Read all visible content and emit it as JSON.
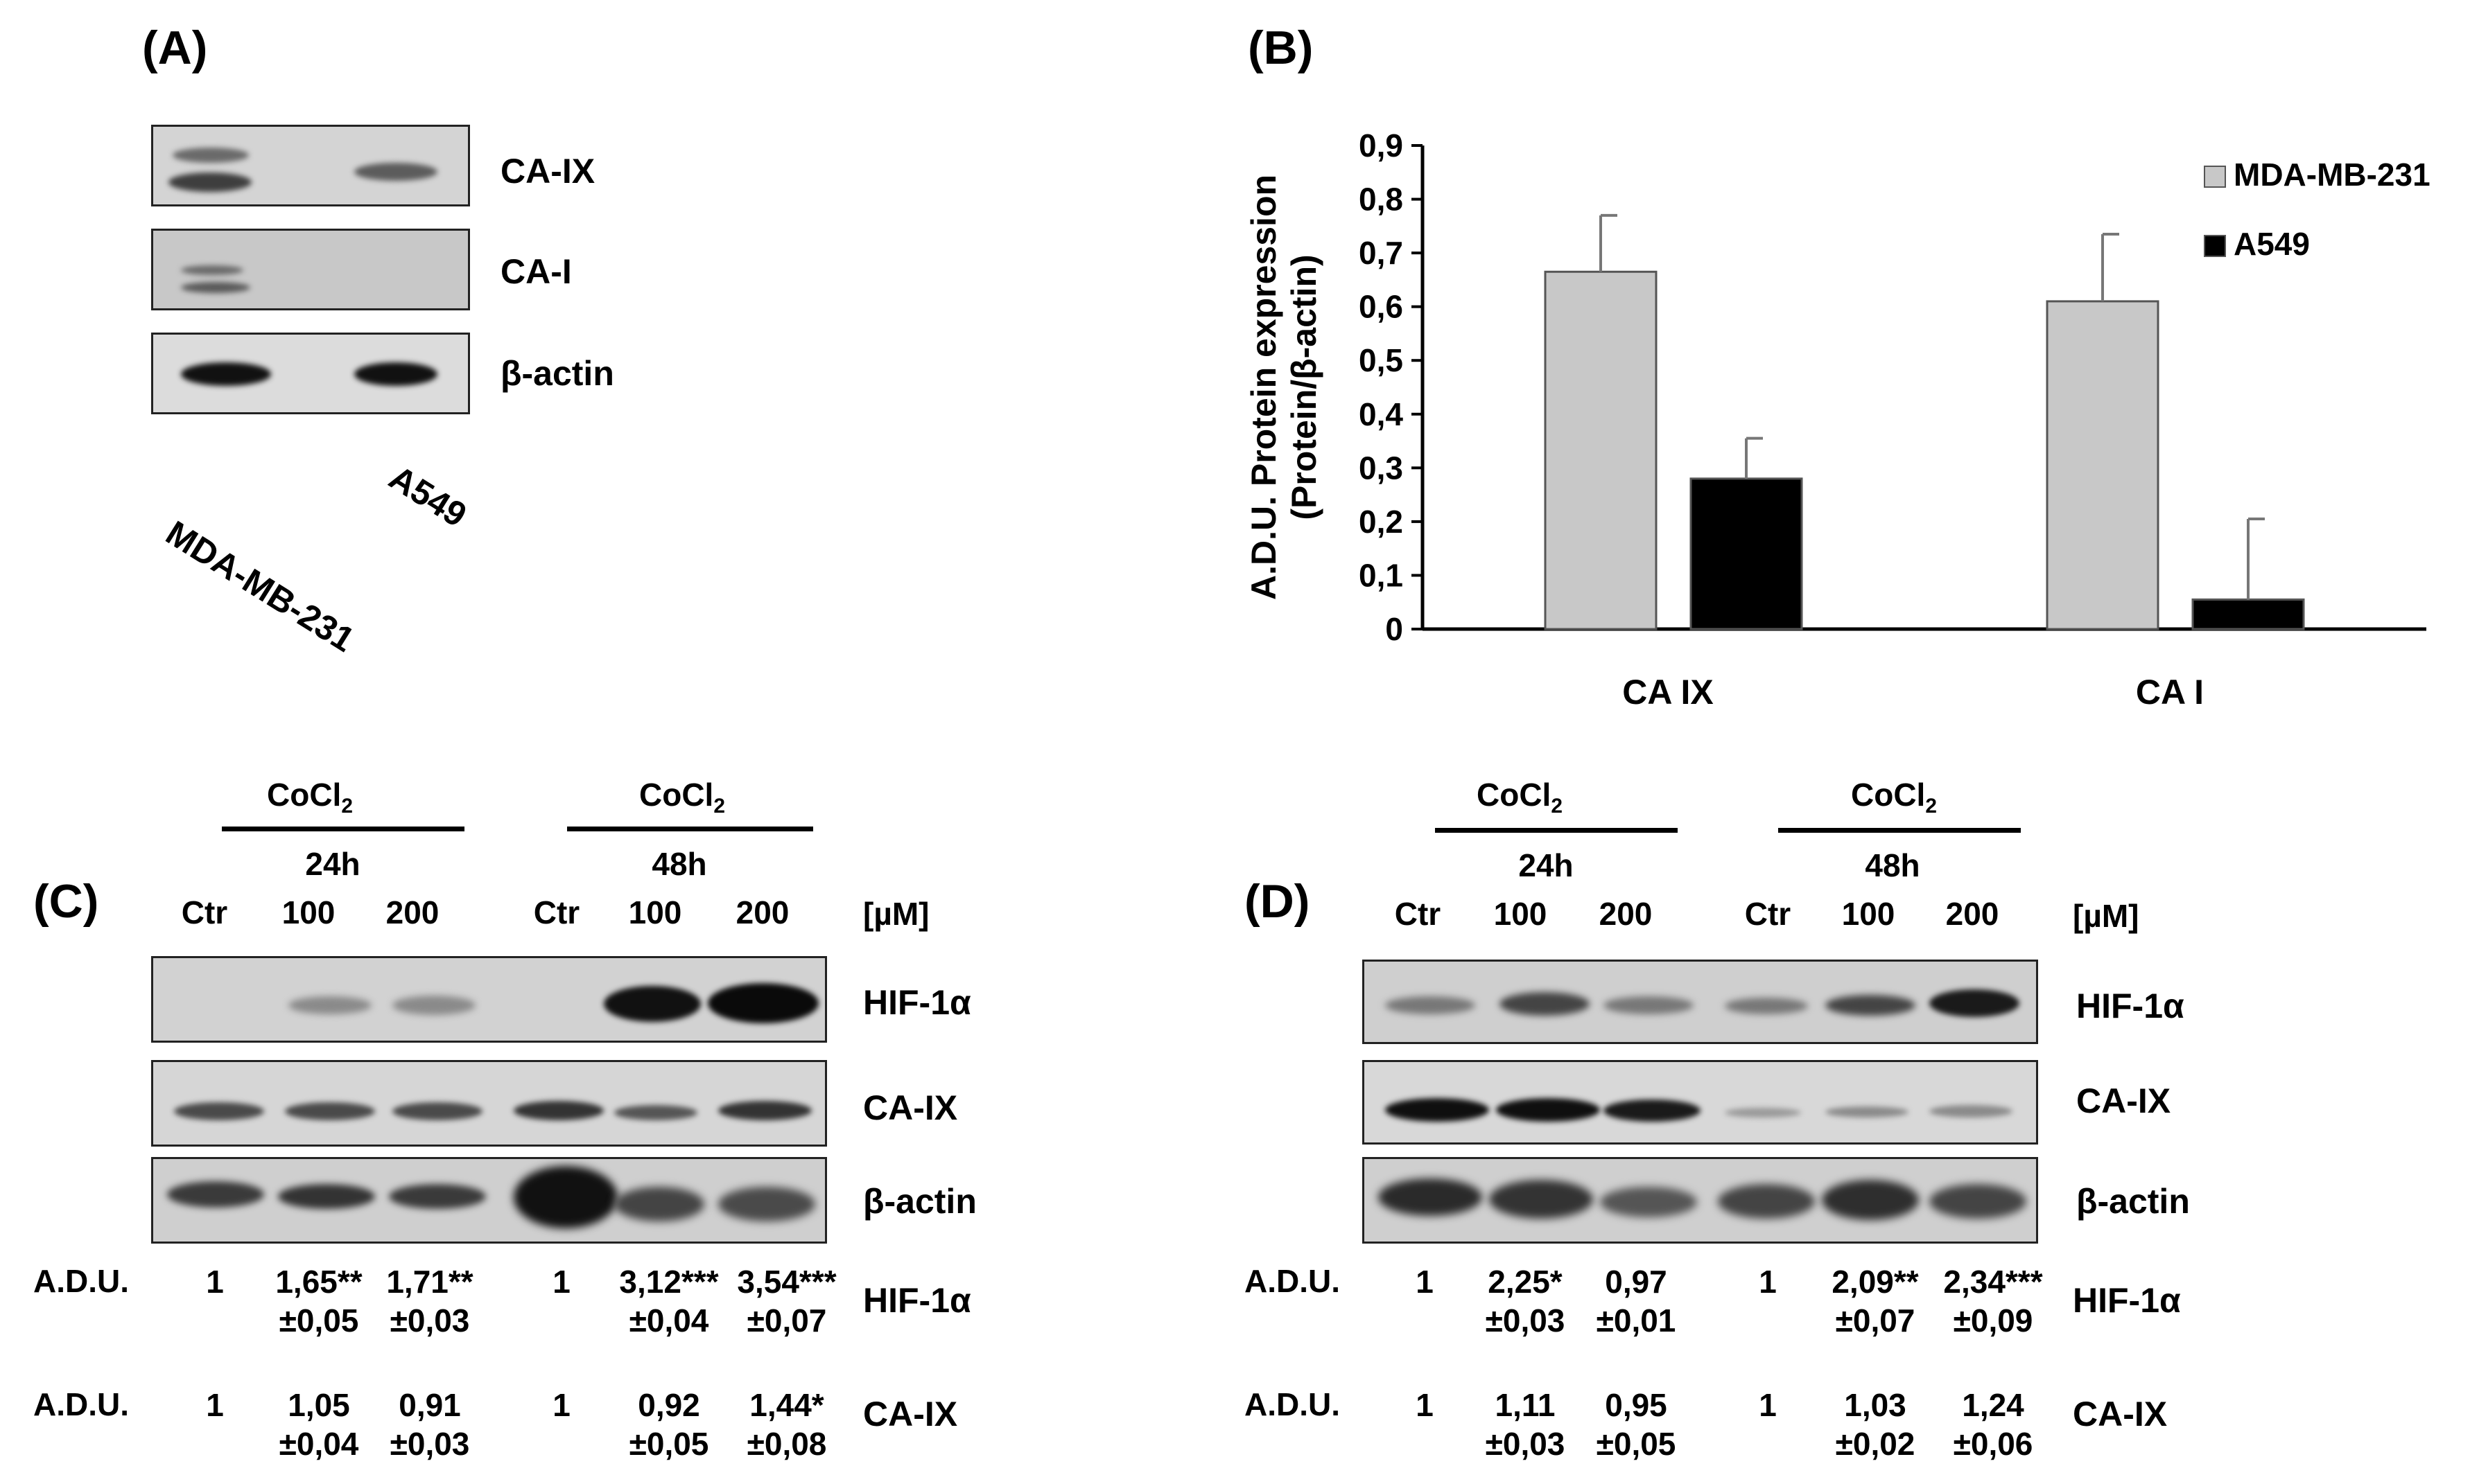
{
  "panelA": {
    "label": "(A)",
    "blot_labels": [
      "CA-IX",
      "CA-I",
      "β-actin"
    ],
    "lane_labels": [
      "MDA-MB-231",
      "A549"
    ]
  },
  "panelB": {
    "label": "(B)",
    "chart_data": {
      "type": "bar",
      "categories": [
        "CA IX",
        "CA I"
      ],
      "series": [
        {
          "name": "MDA-MB-231",
          "values": [
            0.665,
            0.61
          ],
          "errors": [
            0.105,
            0.125
          ],
          "color": "#c8c8c8"
        },
        {
          "name": "A549",
          "values": [
            0.28,
            0.055
          ],
          "errors": [
            0.075,
            0.15
          ],
          "color": "#000000"
        }
      ],
      "ylabel_line1": "A.D.U. Protein expression",
      "ylabel_line2": "(Protein/β-actin)",
      "ylim": [
        0,
        0.9
      ],
      "yticks": [
        "0",
        "0,1",
        "0,2",
        "0,3",
        "0,4",
        "0,5",
        "0,6",
        "0,7",
        "0,8",
        "0,9"
      ],
      "legend_position": "top-right",
      "grid": false
    }
  },
  "panelC": {
    "label": "(C)",
    "treatment": "CoCl",
    "treatment_sub": "2",
    "time_24": "24h",
    "time_48": "48h",
    "lanes": [
      "Ctr",
      "100",
      "200",
      "Ctr",
      "100",
      "200"
    ],
    "unit": "[µM]",
    "blot_labels": [
      "HIF-1α",
      "CA-IX",
      "β-actin"
    ],
    "adu_label": "A.D.U.",
    "rows": [
      {
        "name": "HIF-1α",
        "values": [
          [
            "1",
            ""
          ],
          [
            "1,65**",
            "±0,05"
          ],
          [
            "1,71**",
            "±0,03"
          ],
          [
            "1",
            ""
          ],
          [
            "3,12***",
            "±0,04"
          ],
          [
            "3,54***",
            "±0,07"
          ]
        ]
      },
      {
        "name": "CA-IX",
        "values": [
          [
            "1",
            ""
          ],
          [
            "1,05",
            "±0,04"
          ],
          [
            "0,91",
            "±0,03"
          ],
          [
            "1",
            ""
          ],
          [
            "0,92",
            "±0,05"
          ],
          [
            "1,44*",
            "±0,08"
          ]
        ]
      }
    ]
  },
  "panelD": {
    "label": "(D)",
    "treatment": "CoCl",
    "treatment_sub": "2",
    "time_24": "24h",
    "time_48": "48h",
    "lanes": [
      "Ctr",
      "100",
      "200",
      "Ctr",
      "100",
      "200"
    ],
    "unit": "[µM]",
    "blot_labels": [
      "HIF-1α",
      "CA-IX",
      "β-actin"
    ],
    "adu_label": "A.D.U.",
    "rows": [
      {
        "name": "HIF-1α",
        "values": [
          [
            "1",
            ""
          ],
          [
            "2,25*",
            "±0,03"
          ],
          [
            "0,97",
            "±0,01"
          ],
          [
            "1",
            ""
          ],
          [
            "2,09**",
            "±0,07"
          ],
          [
            "2,34***",
            "±0,09"
          ]
        ]
      },
      {
        "name": "CA-IX",
        "values": [
          [
            "1",
            ""
          ],
          [
            "1,11",
            "±0,03"
          ],
          [
            "0,95",
            "±0,05"
          ],
          [
            "1",
            ""
          ],
          [
            "1,03",
            "±0,02"
          ],
          [
            "1,24",
            "±0,06"
          ]
        ]
      }
    ]
  }
}
